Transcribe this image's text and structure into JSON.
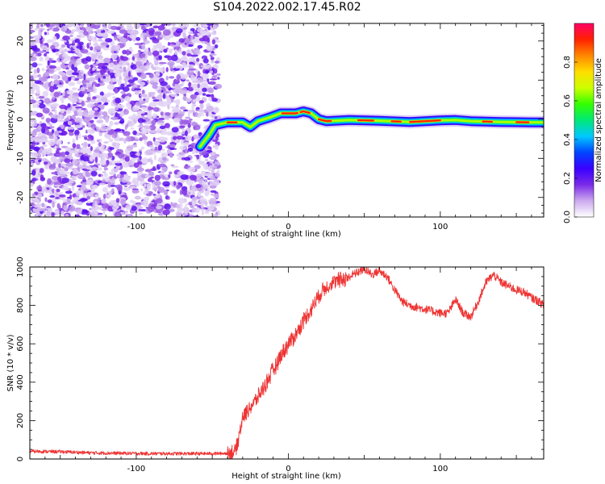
{
  "title": "S104.2022.002.17.45.R02",
  "chart_data": [
    {
      "type": "heatmap",
      "xlabel": "Height of straight line (km)",
      "ylabel": "Frequency (Hz)",
      "xlim": [
        -170,
        168
      ],
      "ylim": [
        -25,
        24.5
      ],
      "xticks": [
        -100,
        0,
        100
      ],
      "yticks": [
        -20,
        -10,
        0,
        10,
        20
      ],
      "grid": false,
      "noise_x_range": [
        -170,
        -50
      ],
      "ridge": {
        "x": [
          -58,
          -52,
          -48,
          -40,
          -30,
          -25,
          -20,
          -12,
          -5,
          0,
          5,
          10,
          15,
          20,
          25,
          40,
          60,
          80,
          100,
          110,
          120,
          140,
          160,
          168
        ],
        "y": [
          -7,
          -4,
          -1.5,
          -0.8,
          -0.8,
          -2,
          -0.5,
          0.5,
          1.5,
          1.5,
          1.5,
          2,
          1.5,
          0,
          -0.5,
          -0.2,
          -0.4,
          -0.7,
          -0.3,
          -0.2,
          -0.5,
          -0.7,
          -0.8,
          -0.8
        ]
      },
      "colorbar": {
        "label": "Normalized spectral amplitude",
        "range": [
          0,
          1
        ],
        "ticks": [
          0.0,
          0.2,
          0.4,
          0.6,
          0.8
        ],
        "tick_labels": [
          "0.0",
          "0.2",
          "0.4",
          "0.6",
          "0.8"
        ],
        "colormap": [
          "#ffffff",
          "#ccaaee",
          "#7a2be8",
          "#3a00ff",
          "#0044ff",
          "#00c8ff",
          "#00e878",
          "#33ff00",
          "#ccff00",
          "#ffdd00",
          "#ff8800",
          "#ff2200",
          "#ff0066"
        ]
      }
    },
    {
      "type": "line",
      "xlabel": "Height of straight line (km)",
      "ylabel": "SNR (10 * v/v)",
      "xlim": [
        -170,
        168
      ],
      "ylim": [
        0,
        1000
      ],
      "xticks": [
        -100,
        0,
        100
      ],
      "yticks": [
        0,
        200,
        400,
        600,
        800,
        1000
      ],
      "grid": false,
      "series": [
        {
          "color": "#ee3333",
          "x": [
            -170,
            -150,
            -130,
            -110,
            -90,
            -70,
            -50,
            -40,
            -35,
            -33,
            -30,
            -25,
            -20,
            -15,
            -10,
            -5,
            0,
            5,
            10,
            15,
            20,
            25,
            30,
            40,
            50,
            55,
            60,
            65,
            70,
            75,
            80,
            85,
            90,
            95,
            100,
            105,
            110,
            115,
            120,
            125,
            130,
            135,
            140,
            145,
            150,
            155,
            160,
            165,
            168
          ],
          "y": [
            40,
            38,
            32,
            30,
            28,
            28,
            28,
            30,
            40,
            100,
            220,
            270,
            320,
            390,
            460,
            540,
            600,
            650,
            720,
            780,
            850,
            900,
            920,
            950,
            990,
            960,
            980,
            950,
            880,
            820,
            800,
            790,
            780,
            770,
            760,
            760,
            830,
            760,
            740,
            820,
            920,
            960,
            920,
            900,
            880,
            870,
            840,
            820,
            800
          ]
        }
      ]
    }
  ]
}
